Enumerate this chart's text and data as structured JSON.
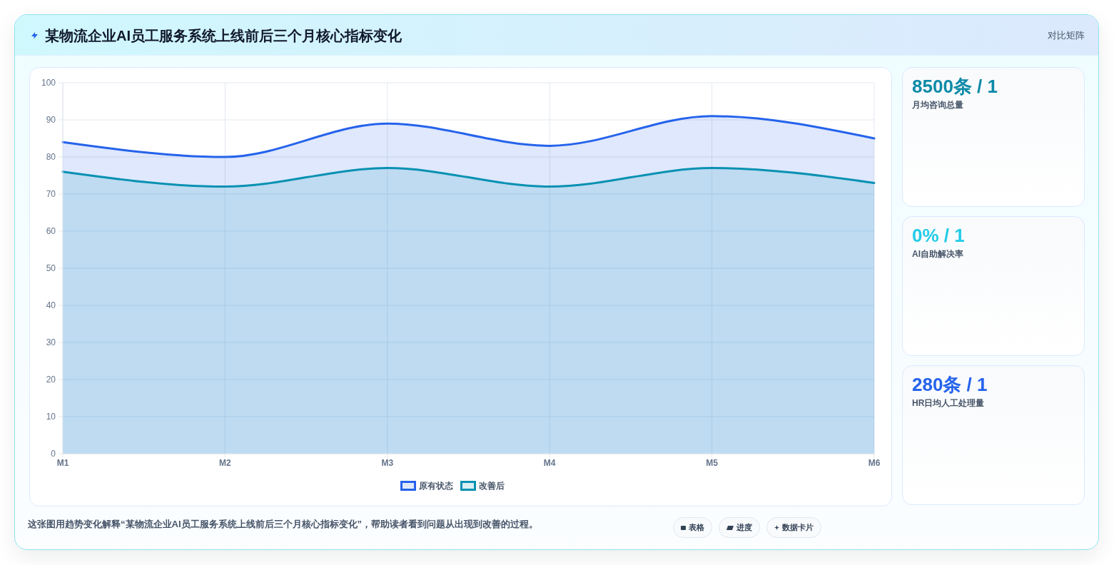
{
  "chart_data": [
    {
      "type": "area",
      "title": "某物流企业AI员工服务系统上线前后三个月核心指标变化",
      "annotations": [
        "对比矩阵",
        "这张图用趋势变化解释“某物流企业AI员工服务系统上线前后三个月核心指标变化”，帮助读者看到问题从出现到改善的过程。",
        "表格",
        "进度",
        "数据卡片"
      ],
      "categories": [
        "M1",
        "M2",
        "M3",
        "M4",
        "M5",
        "M6"
      ],
      "series": [
        {
          "name": "原有状态",
          "color": "#2563eb",
          "values": [
            84,
            80,
            89,
            83,
            91,
            85
          ]
        },
        {
          "name": "改善后",
          "color": "#0891b2",
          "values": [
            76,
            72,
            77,
            72,
            77,
            73
          ]
        }
      ],
      "ylim": [
        0,
        100
      ],
      "yticks": [
        0,
        10,
        20,
        30,
        40,
        50,
        60,
        70,
        80,
        90,
        100
      ],
      "grid": true,
      "legend": "bottom"
    },
    {
      "type": "other",
      "title": "8500条 / 1",
      "subtitle": "月均咨询总量",
      "color": "#0e8aa8"
    },
    {
      "type": "other",
      "title": "0% / 1",
      "subtitle": "AI自助解决率",
      "color": "#22cce6"
    },
    {
      "type": "other",
      "title": "280条 / 1",
      "subtitle": "HR日均人工处理量",
      "color": "#2563eb"
    }
  ]
}
